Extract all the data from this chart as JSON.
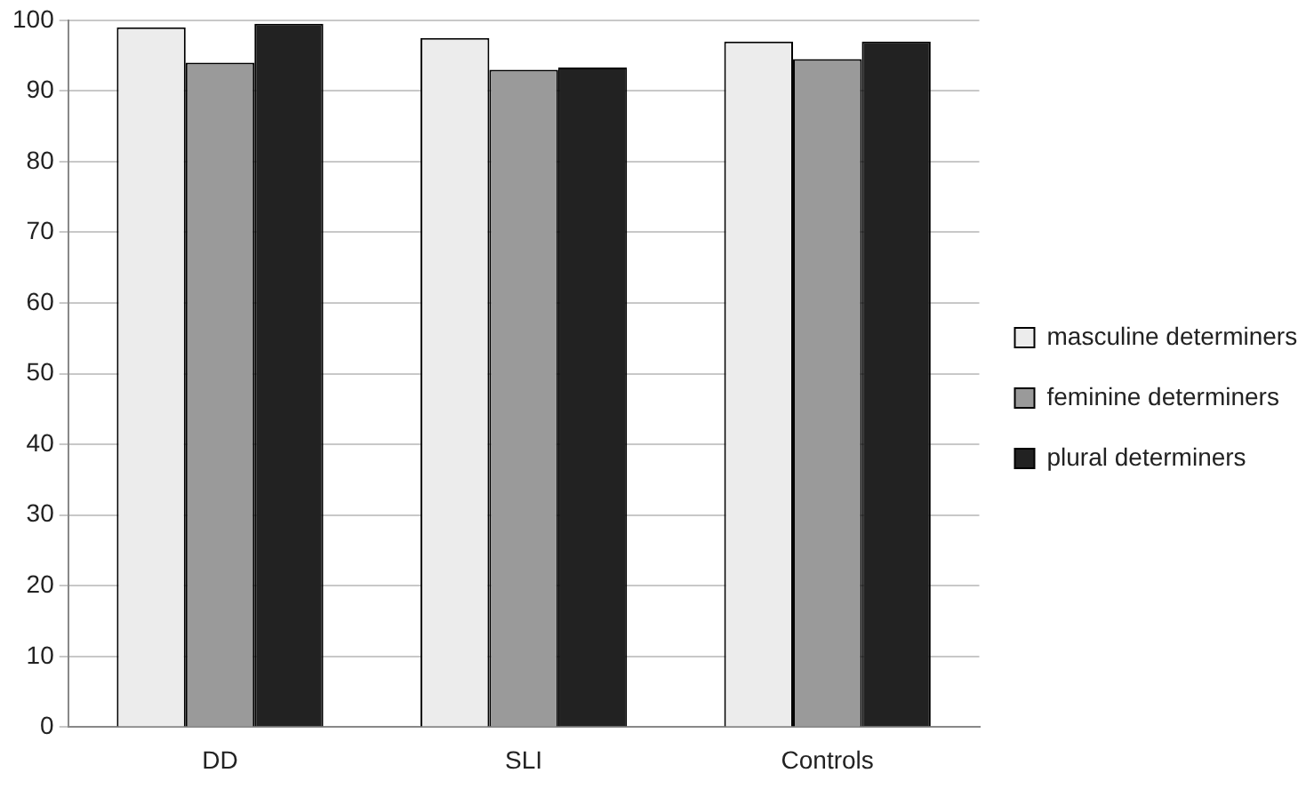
{
  "chart_data": {
    "type": "bar",
    "categories": [
      "DD",
      "SLI",
      "Controls"
    ],
    "series": [
      {
        "name": "masculine determiners",
        "color": "#ececec",
        "values": [
          99,
          97.5,
          97
        ]
      },
      {
        "name": "feminine determiners",
        "color": "#9a9a9a",
        "values": [
          94,
          93,
          94.5
        ]
      },
      {
        "name": "plural determiners",
        "color": "#222222",
        "values": [
          99.5,
          93.3,
          97
        ]
      }
    ],
    "ylim": [
      0,
      100
    ],
    "yticks": [
      0,
      10,
      20,
      30,
      40,
      50,
      60,
      70,
      80,
      90,
      100
    ],
    "grid": "y",
    "legend": "right"
  }
}
